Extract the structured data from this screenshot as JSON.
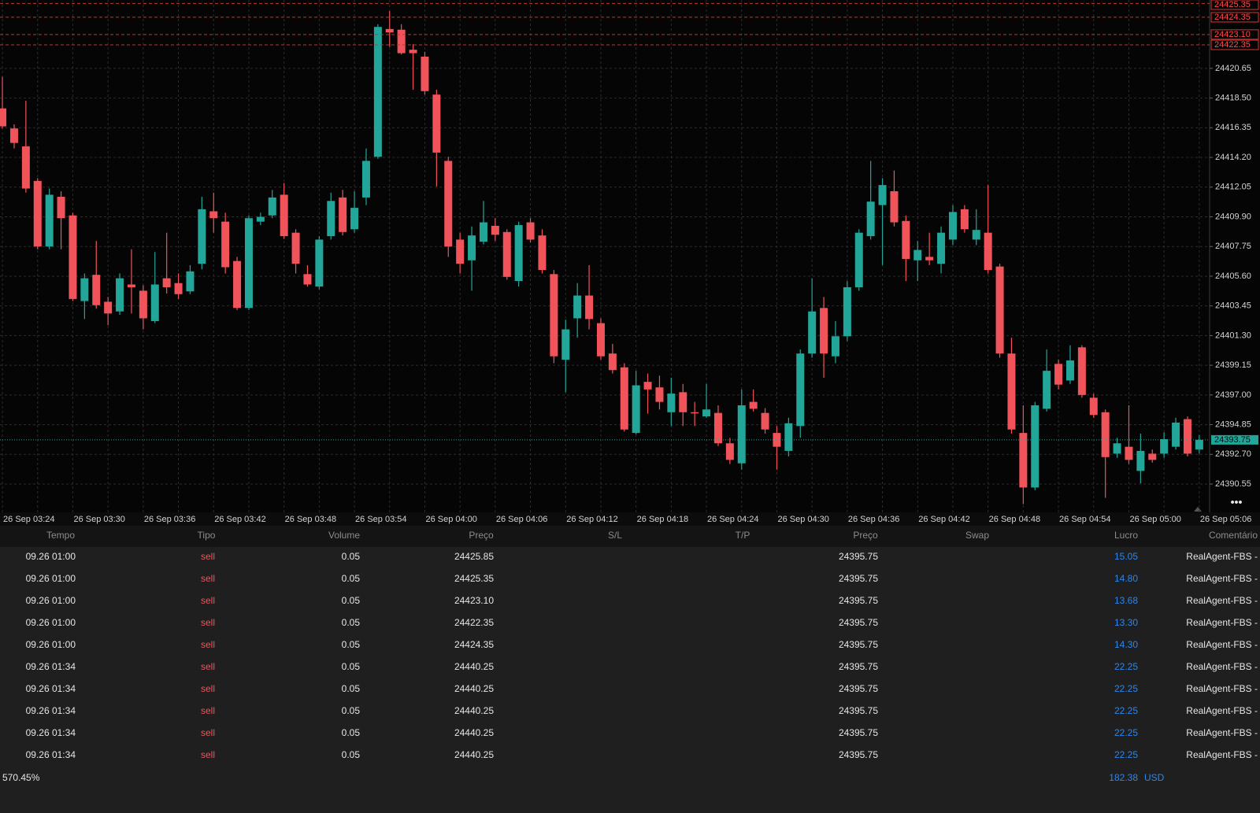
{
  "chart_data": {
    "type": "candlestick",
    "categories": [
      "26 Sep 03:24",
      null,
      null,
      null,
      null,
      null,
      "26 Sep 03:30",
      null,
      null,
      null,
      null,
      null,
      "26 Sep 03:36",
      null,
      null,
      null,
      null,
      null,
      "26 Sep 03:42",
      null,
      null,
      null,
      null,
      null,
      "26 Sep 03:48",
      null,
      null,
      null,
      null,
      null,
      "26 Sep 03:54",
      null,
      null,
      null,
      null,
      null,
      "26 Sep 04:00",
      null,
      null,
      null,
      null,
      null,
      "26 Sep 04:06",
      null,
      null,
      null,
      null,
      null,
      "26 Sep 04:12",
      null,
      null,
      null,
      null,
      null,
      "26 Sep 04:18",
      null,
      null,
      null,
      null,
      null,
      "26 Sep 04:24",
      null,
      null,
      null,
      null,
      null,
      "26 Sep 04:30",
      null,
      null,
      null,
      null,
      null,
      "26 Sep 04:36",
      null,
      null,
      null,
      null,
      null,
      "26 Sep 04:42",
      null,
      null,
      null,
      null,
      null,
      "26 Sep 04:48",
      null,
      null,
      null,
      null,
      null,
      "26 Sep 04:54",
      null,
      null,
      null,
      null,
      null,
      "26 Sep 05:00",
      null,
      null,
      null,
      null,
      null,
      "26 Sep 05:06"
    ],
    "open": [
      24417.75,
      24416.3,
      24415.0,
      24412.5,
      24407.75,
      24411.35,
      24410.0,
      24403.8,
      24405.7,
      24403.75,
      24403.05,
      24405.0,
      24404.55,
      24402.35,
      24405.45,
      24405.1,
      24404.5,
      24406.5,
      24410.3,
      24409.55,
      24406.7,
      24403.3,
      24409.55,
      24410.0,
      24411.5,
      24408.75,
      24405.75,
      24404.85,
      24408.5,
      24411.3,
      24409.0,
      24411.3,
      24414.25,
      24423.5,
      24423.45,
      24422.0,
      24421.5,
      24418.75,
      24413.95,
      24408.25,
      24406.75,
      24408.1,
      24409.25,
      24408.8,
      24405.25,
      24409.5,
      24408.55,
      24405.75,
      24399.55,
      24402.55,
      24404.2,
      24402.2,
      24400.0,
      24399.0,
      24394.25,
      24397.95,
      24397.55,
      24395.75,
      24397.2,
      24395.75,
      24395.45,
      24395.7,
      24393.5,
      24392.05,
      24396.5,
      24395.7,
      24394.25,
      24392.95,
      24394.75,
      24400.0,
      24403.3,
      24399.8,
      24401.25,
      24404.8,
      24408.5,
      24410.75,
      24411.75,
      24409.6,
      24406.75,
      24407.0,
      24406.5,
      24408.25,
      24410.45,
      24408.25,
      24408.75,
      24406.3,
      24400.0,
      24394.25,
      24390.3,
      24396.0,
      24399.25,
      24398.05,
      24400.45,
      24396.8,
      24395.75,
      24392.75,
      24393.25,
      24391.5,
      24392.75,
      24392.75,
      24393.25,
      24395.25,
      24393.05
    ],
    "high": [
      24420.05,
      24416.6,
      24418.3,
      24412.7,
      24411.95,
      24411.75,
      24410.2,
      24405.8,
      24408.15,
      24404.1,
      24405.8,
      24407.55,
      24404.95,
      24407.35,
      24408.75,
      24405.8,
      24406.4,
      24411.35,
      24411.65,
      24410.2,
      24407.0,
      24410.0,
      24410.2,
      24411.85,
      24412.35,
      24409.0,
      24406.4,
      24408.5,
      24411.65,
      24411.85,
      24411.75,
      24414.85,
      24423.85,
      24424.8,
      24423.85,
      24422.4,
      24421.85,
      24419.1,
      24414.25,
      24408.75,
      24409.2,
      24411.05,
      24409.8,
      24409.0,
      24409.55,
      24409.8,
      24409.0,
      24406.05,
      24402.45,
      24405.1,
      24406.4,
      24402.55,
      24400.7,
      24399.3,
      24398.75,
      24398.55,
      24398.4,
      24398.25,
      24397.8,
      24396.5,
      24397.8,
      24396.25,
      24393.9,
      24397.4,
      24397.4,
      24396.05,
      24394.75,
      24395.35,
      24400.3,
      24405.45,
      24404.1,
      24402.35,
      24405.25,
      24409.0,
      24413.95,
      24412.7,
      24413.25,
      24410.0,
      24408.15,
      24408.75,
      24409.2,
      24410.75,
      24410.75,
      24410.45,
      24412.2,
      24406.5,
      24401.15,
      24396.25,
      24396.5,
      24400.3,
      24399.55,
      24400.6,
      24400.6,
      24397.1,
      24395.95,
      24393.9,
      24396.25,
      24394.2,
      24393.05,
      24394.3,
      24395.35,
      24395.45,
      24394.1
    ],
    "low": [
      24416.3,
      24414.85,
      24411.65,
      24407.55,
      24407.55,
      24407.55,
      24403.8,
      24402.5,
      24403.25,
      24402.05,
      24402.8,
      24402.9,
      24401.75,
      24402.2,
      24404.35,
      24403.95,
      24404.3,
      24406.1,
      24408.75,
      24405.8,
      24403.15,
      24403.15,
      24409.3,
      24409.8,
      24408.3,
      24405.8,
      24404.85,
      24404.65,
      24408.25,
      24408.55,
      24408.75,
      24410.75,
      24414.1,
      24422.2,
      24421.65,
      24419.1,
      24418.75,
      24412.1,
      24407.0,
      24405.8,
      24404.55,
      24407.9,
      24408.15,
      24405.35,
      24404.85,
      24408.05,
      24405.8,
      24399.3,
      24397.2,
      24401.15,
      24401.75,
      24399.55,
      24398.55,
      24394.35,
      24394.15,
      24395.65,
      24395.95,
      24394.75,
      24394.75,
      24394.75,
      24395.35,
      24393.3,
      24392.0,
      24391.6,
      24395.8,
      24394.2,
      24391.6,
      24392.55,
      24393.9,
      24399.7,
      24398.25,
      24399.3,
      24400.9,
      24404.55,
      24408.25,
      24406.4,
      24409.2,
      24405.25,
      24405.25,
      24406.4,
      24405.8,
      24407.85,
      24408.75,
      24407.85,
      24405.8,
      24399.7,
      24394.2,
      24389.1,
      24390.1,
      24395.8,
      24397.4,
      24397.8,
      24396.8,
      24395.35,
      24389.55,
      24392.45,
      24392.0,
      24390.6,
      24392.1,
      24392.45,
      24393.05,
      24392.55,
      24392.75
    ],
    "close": [
      24416.45,
      24415.25,
      24411.95,
      24407.75,
      24411.5,
      24409.8,
      24403.95,
      24405.45,
      24403.5,
      24402.9,
      24405.45,
      24404.8,
      24402.55,
      24405.0,
      24404.8,
      24404.3,
      24405.95,
      24410.45,
      24409.8,
      24406.25,
      24403.3,
      24409.8,
      24409.9,
      24411.3,
      24408.5,
      24406.5,
      24405.0,
      24408.25,
      24411.05,
      24408.8,
      24410.55,
      24413.95,
      24423.65,
      24423.25,
      24421.75,
      24421.75,
      24419.0,
      24414.55,
      24407.75,
      24406.5,
      24408.55,
      24409.5,
      24408.6,
      24405.55,
      24409.3,
      24408.25,
      24406.05,
      24399.8,
      24401.75,
      24404.2,
      24402.5,
      24399.8,
      24398.8,
      24394.5,
      24397.7,
      24397.4,
      24396.5,
      24397.1,
      24395.75,
      24395.7,
      24395.95,
      24393.5,
      24392.3,
      24396.25,
      24396.0,
      24394.5,
      24393.25,
      24394.95,
      24400.0,
      24403.05,
      24400.0,
      24401.25,
      24404.8,
      24408.75,
      24411.0,
      24412.2,
      24409.5,
      24406.85,
      24407.5,
      24406.75,
      24408.75,
      24410.25,
      24409.0,
      24408.95,
      24406.05,
      24400.0,
      24394.5,
      24390.3,
      24396.25,
      24398.75,
      24397.75,
      24399.5,
      24397.0,
      24395.55,
      24392.5,
      24393.5,
      24392.3,
      24392.95,
      24392.3,
      24393.8,
      24395.0,
      24392.75,
      24393.75
    ],
    "up_color": "#22a699",
    "down_color": "#f0545a",
    "ylim": [
      24388.5,
      24425.6
    ],
    "yticks": [
      24390.55,
      {
        "value": 24392.7,
        "label": "24392.70"
      },
      24394.85,
      {
        "value": 24397,
        "label": "24397.00"
      },
      24399.15,
      {
        "value": 24401.3,
        "label": "24401.30"
      },
      24403.45,
      {
        "value": 24405.6,
        "label": "24405.60"
      },
      24407.75,
      {
        "value": 24409.9,
        "label": "24409.90"
      },
      24412.05,
      {
        "value": 24414.2,
        "label": "24414.20"
      },
      24416.35,
      {
        "value": 24418.5,
        "label": "24418.50"
      },
      24420.65
    ],
    "grid": true,
    "last_price": 24393.75
  },
  "table": {
    "headers": [
      "Tempo",
      "Tipo",
      "Volume",
      "Preço",
      "S/L",
      "T/P",
      "Preço",
      "Swap",
      "Lucro",
      "Comentário"
    ],
    "rows": [
      {
        "time": "09.26 01:00",
        "type": "sell",
        "volume": "0.05",
        "open_price": "24425.85",
        "price": "24395.75",
        "profit": "15.05",
        "comment": "RealAgent-FBS -"
      },
      {
        "time": "09.26 01:00",
        "type": "sell",
        "volume": "0.05",
        "open_price": "24425.35",
        "price": "24395.75",
        "profit": "14.80",
        "comment": "RealAgent-FBS -"
      },
      {
        "time": "09.26 01:00",
        "type": "sell",
        "volume": "0.05",
        "open_price": "24423.10",
        "price": "24395.75",
        "profit": "13.68",
        "comment": "RealAgent-FBS -"
      },
      {
        "time": "09.26 01:00",
        "type": "sell",
        "volume": "0.05",
        "open_price": "24422.35",
        "price": "24395.75",
        "profit": "13.30",
        "comment": "RealAgent-FBS -"
      },
      {
        "time": "09.26 01:00",
        "type": "sell",
        "volume": "0.05",
        "open_price": "24424.35",
        "price": "24395.75",
        "profit": "14.30",
        "comment": "RealAgent-FBS -"
      },
      {
        "time": "09.26 01:34",
        "type": "sell",
        "volume": "0.05",
        "open_price": "24440.25",
        "price": "24395.75",
        "profit": "22.25",
        "comment": "RealAgent-FBS -"
      },
      {
        "time": "09.26 01:34",
        "type": "sell",
        "volume": "0.05",
        "open_price": "24440.25",
        "price": "24395.75",
        "profit": "22.25",
        "comment": "RealAgent-FBS -"
      },
      {
        "time": "09.26 01:34",
        "type": "sell",
        "volume": "0.05",
        "open_price": "24440.25",
        "price": "24395.75",
        "profit": "22.25",
        "comment": "RealAgent-FBS -"
      },
      {
        "time": "09.26 01:34",
        "type": "sell",
        "volume": "0.05",
        "open_price": "24440.25",
        "price": "24395.75",
        "profit": "22.25",
        "comment": "RealAgent-FBS -"
      },
      {
        "time": "09.26 01:34",
        "type": "sell",
        "volume": "0.05",
        "open_price": "24440.25",
        "price": "24395.75",
        "profit": "22.25",
        "comment": "RealAgent-FBS -"
      }
    ],
    "footer": {
      "margin_level": "570.45%",
      "profit": "182.38",
      "currency": "USD"
    }
  }
}
